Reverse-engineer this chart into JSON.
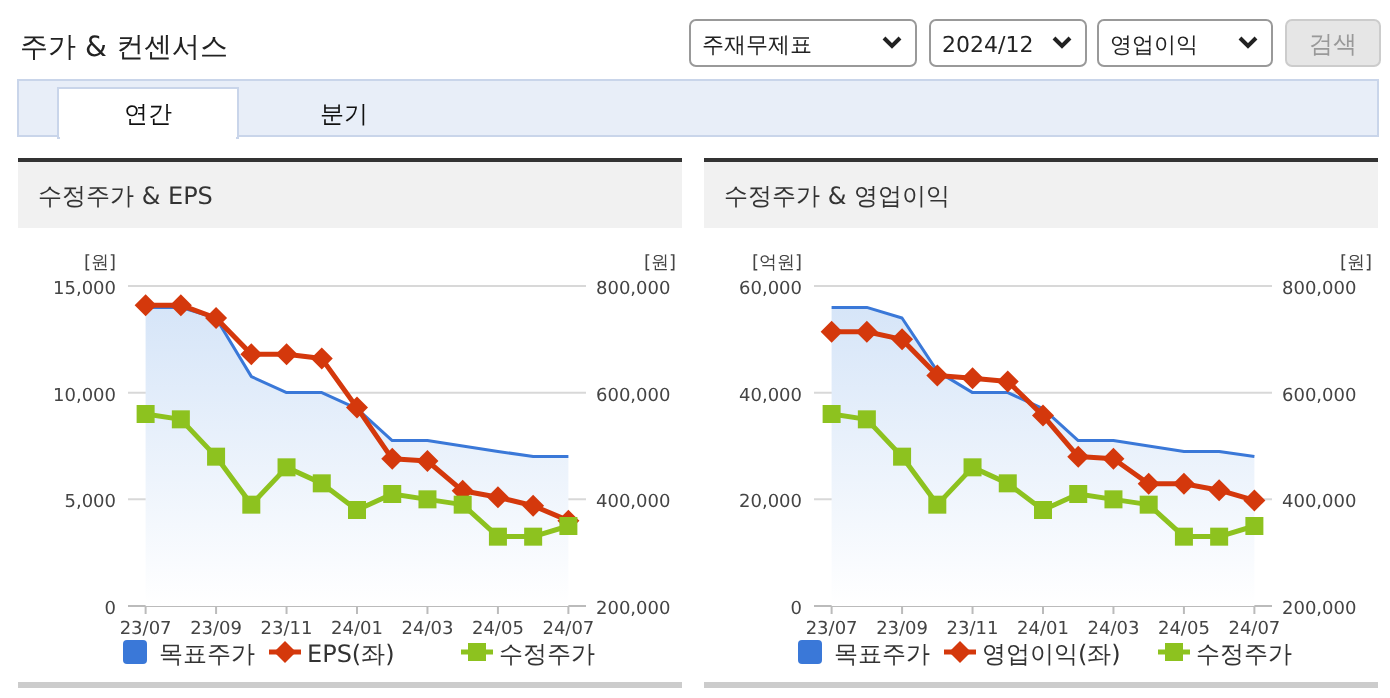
{
  "chart_data": [
    {
      "type": "other",
      "title": "주가 & 컨센서스",
      "annotations": [
        "주재무제표",
        "2024/12",
        "영업이익",
        "검색",
        "연간",
        "분기"
      ]
    },
    {
      "type": "line",
      "title": "수정주가 & EPS",
      "ylabel": "[원]",
      "y2label": "[원]",
      "categories": [
        "23/07",
        null,
        "23/09",
        null,
        "23/11",
        null,
        "24/01",
        null,
        "24/03",
        null,
        "24/05",
        null,
        "24/07"
      ],
      "ylim": [
        0,
        15000
      ],
      "yticks": [
        {
          "value": 0,
          "label": "0"
        },
        {
          "value": 5000,
          "label": "5,000"
        },
        {
          "value": 10000,
          "label": "10,000"
        },
        {
          "value": 15000,
          "label": "15,000"
        }
      ],
      "y2lim": [
        200000,
        800000
      ],
      "y2ticks": [
        {
          "value": 200000,
          "label": "200,000"
        },
        {
          "value": 400000,
          "label": "400,000"
        },
        {
          "value": 600000,
          "label": "600,000"
        },
        {
          "value": 800000,
          "label": "800,000"
        }
      ],
      "grid": "y",
      "legend": "bottom",
      "series": [
        {
          "name": "목표주가",
          "type": "area",
          "axis": "y2",
          "color": "#3a78d8",
          "marker": "none",
          "values": [
            760000,
            760000,
            740000,
            630000,
            600000,
            600000,
            570000,
            510000,
            510000,
            500000,
            490000,
            480000,
            480000
          ]
        },
        {
          "name": "EPS(좌)",
          "type": "line",
          "axis": "y",
          "color": "#d4380c",
          "marker": "diamond",
          "values": [
            14100,
            14100,
            13500,
            11800,
            11800,
            11600,
            9300,
            6900,
            6800,
            5400,
            5100,
            4700,
            4000
          ]
        },
        {
          "name": "수정주가",
          "type": "line",
          "axis": "y2",
          "color": "#8dc21f",
          "marker": "square",
          "values": [
            560000,
            550000,
            480000,
            390000,
            460000,
            430000,
            380000,
            410000,
            400000,
            390000,
            330000,
            330000,
            350000
          ]
        }
      ]
    },
    {
      "type": "line",
      "title": "수정주가 & 영업이익",
      "ylabel": "[억원]",
      "y2label": "[원]",
      "categories": [
        "23/07",
        null,
        "23/09",
        null,
        "23/11",
        null,
        "24/01",
        null,
        "24/03",
        null,
        "24/05",
        null,
        "24/07"
      ],
      "ylim": [
        0,
        60000
      ],
      "yticks": [
        {
          "value": 0,
          "label": "0"
        },
        {
          "value": 20000,
          "label": "20,000"
        },
        {
          "value": 40000,
          "label": "40,000"
        },
        {
          "value": 60000,
          "label": "60,000"
        }
      ],
      "y2lim": [
        200000,
        800000
      ],
      "y2ticks": [
        {
          "value": 200000,
          "label": "200,000"
        },
        {
          "value": 400000,
          "label": "400,000"
        },
        {
          "value": 600000,
          "label": "600,000"
        },
        {
          "value": 800000,
          "label": "800,000"
        }
      ],
      "grid": "y",
      "legend": "bottom",
      "series": [
        {
          "name": "목표주가",
          "type": "area",
          "axis": "y2",
          "color": "#3a78d8",
          "marker": "none",
          "values": [
            760000,
            760000,
            740000,
            640000,
            600000,
            600000,
            570000,
            510000,
            510000,
            500000,
            490000,
            490000,
            480000
          ]
        },
        {
          "name": "영업이익(좌)",
          "type": "line",
          "axis": "y",
          "color": "#d4380c",
          "marker": "diamond",
          "values": [
            51400,
            51400,
            50000,
            43200,
            42700,
            42100,
            35700,
            28000,
            27600,
            22900,
            22900,
            21700,
            19800
          ]
        },
        {
          "name": "수정주가",
          "type": "line",
          "axis": "y2",
          "color": "#8dc21f",
          "marker": "square",
          "values": [
            560000,
            550000,
            480000,
            390000,
            460000,
            430000,
            380000,
            410000,
            400000,
            390000,
            330000,
            330000,
            350000
          ]
        }
      ]
    }
  ]
}
